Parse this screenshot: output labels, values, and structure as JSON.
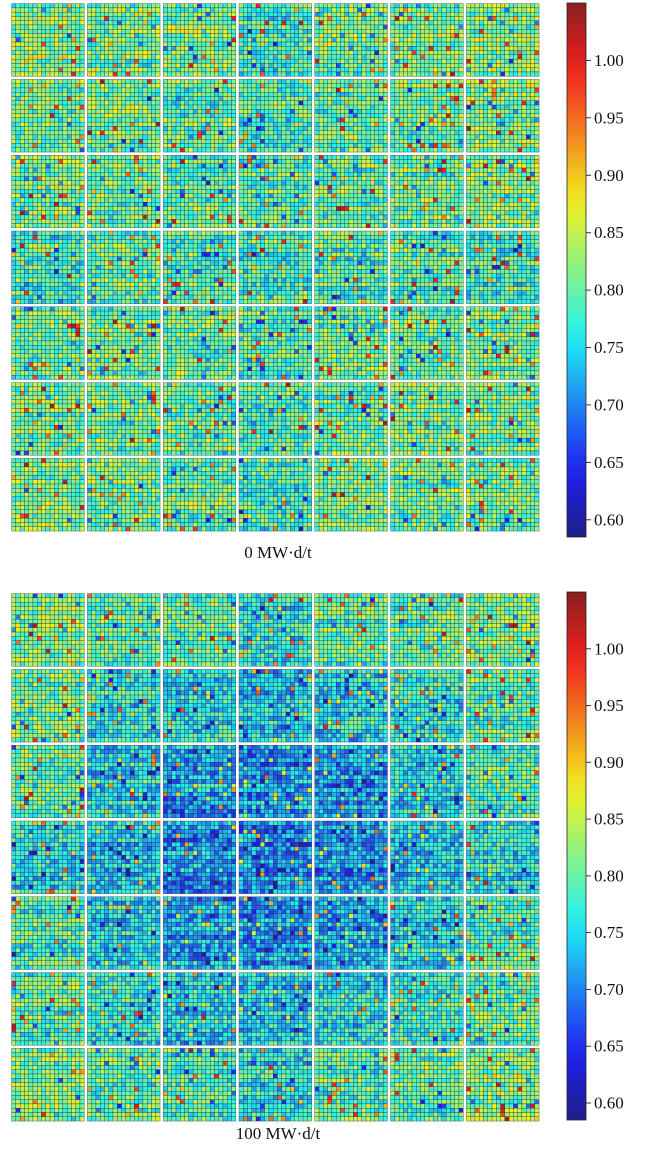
{
  "chart_data": [
    {
      "type": "heatmap",
      "title": "",
      "caption": "0 MW·d/t",
      "xlabel": "",
      "ylabel": "",
      "grid": "7 x 7 fuel assemblies, 17 x 17 rods each",
      "assemblies_rows": 7,
      "assemblies_cols": 7,
      "rods_per_side": 17,
      "colorbar": {
        "range": [
          0.585,
          1.05
        ],
        "ticks": [
          0.6,
          0.65,
          0.7,
          0.75,
          0.8,
          0.85,
          0.9,
          0.95,
          1.0
        ],
        "tick_labels": [
          "0.60",
          "0.65",
          "0.70",
          "0.75",
          "0.80",
          "0.85",
          "0.90",
          "0.95",
          "1.00"
        ],
        "colormap": "jet",
        "placement": "right"
      },
      "assembly_mean_values": [
        [
          0.82,
          0.81,
          0.81,
          0.78,
          0.81,
          0.81,
          0.82
        ],
        [
          0.81,
          0.81,
          0.8,
          0.79,
          0.8,
          0.81,
          0.81
        ],
        [
          0.81,
          0.8,
          0.8,
          0.79,
          0.8,
          0.8,
          0.81
        ],
        [
          0.78,
          0.79,
          0.79,
          0.78,
          0.79,
          0.79,
          0.78
        ],
        [
          0.81,
          0.8,
          0.8,
          0.79,
          0.8,
          0.8,
          0.81
        ],
        [
          0.81,
          0.81,
          0.8,
          0.79,
          0.8,
          0.81,
          0.81
        ],
        [
          0.82,
          0.81,
          0.81,
          0.78,
          0.81,
          0.81,
          0.82
        ]
      ],
      "rod_value_spread": 0.07,
      "value_range": [
        0.6,
        1.04
      ]
    },
    {
      "type": "heatmap",
      "title": "",
      "caption": "100 MW·d/t",
      "xlabel": "",
      "ylabel": "",
      "grid": "7 x 7 fuel assemblies, 17 x 17 rods each",
      "assemblies_rows": 7,
      "assemblies_cols": 7,
      "rods_per_side": 17,
      "colorbar": {
        "range": [
          0.585,
          1.05
        ],
        "ticks": [
          0.6,
          0.65,
          0.7,
          0.75,
          0.8,
          0.85,
          0.9,
          0.95,
          1.0
        ],
        "tick_labels": [
          "0.60",
          "0.65",
          "0.70",
          "0.75",
          "0.80",
          "0.85",
          "0.90",
          "0.95",
          "1.00"
        ],
        "colormap": "jet",
        "placement": "right"
      },
      "assembly_mean_values": [
        [
          0.82,
          0.8,
          0.79,
          0.76,
          0.79,
          0.8,
          0.82
        ],
        [
          0.8,
          0.77,
          0.75,
          0.74,
          0.75,
          0.77,
          0.8
        ],
        [
          0.79,
          0.75,
          0.72,
          0.71,
          0.72,
          0.75,
          0.79
        ],
        [
          0.76,
          0.74,
          0.71,
          0.7,
          0.71,
          0.74,
          0.76
        ],
        [
          0.79,
          0.75,
          0.72,
          0.71,
          0.72,
          0.75,
          0.79
        ],
        [
          0.8,
          0.77,
          0.75,
          0.74,
          0.75,
          0.77,
          0.8
        ],
        [
          0.82,
          0.8,
          0.79,
          0.76,
          0.79,
          0.8,
          0.82
        ]
      ],
      "rod_value_spread": 0.07,
      "value_range": [
        0.6,
        1.04
      ]
    }
  ]
}
